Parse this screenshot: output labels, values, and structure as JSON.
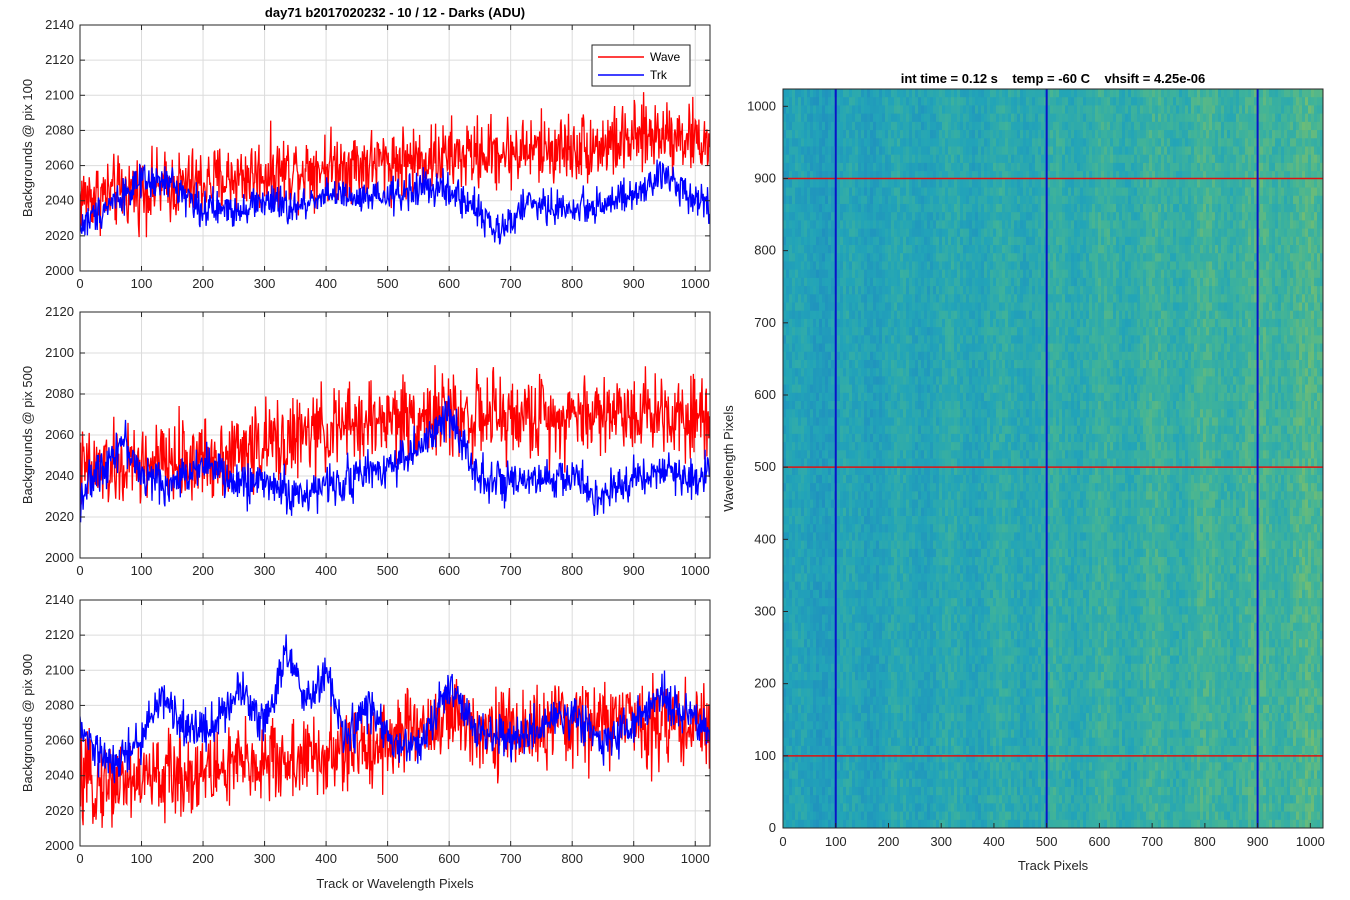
{
  "figure_title": "day71 b2017020232 - 10 / 12 - Darks (ADU)",
  "colors": {
    "wave": "#ff0000",
    "trk": "#0000ff",
    "grid": "#dcdcdc",
    "axis": "#262626",
    "hline": "#e01010",
    "vline": "#0a14c8"
  },
  "chart_data": [
    {
      "type": "line",
      "title": "day71 b2017020232 - 10 / 12 - Darks (ADU)",
      "xlabel": "",
      "ylabel": "Backgrounds @ pix 100",
      "xlim": [
        0,
        1024
      ],
      "ylim": [
        2000,
        2140
      ],
      "xticks": [
        0,
        100,
        200,
        300,
        400,
        500,
        600,
        700,
        800,
        900,
        1000
      ],
      "yticks": [
        2000,
        2020,
        2040,
        2060,
        2080,
        2100,
        2120,
        2140
      ],
      "grid": true,
      "legend": {
        "placement": "top-right",
        "entries": [
          "Wave",
          "Trk"
        ]
      },
      "series": [
        {
          "name": "Wave",
          "color": "#ff0000",
          "noise": 10,
          "x": [
            0,
            100,
            200,
            300,
            400,
            500,
            600,
            700,
            800,
            900,
            950,
            1024
          ],
          "y": [
            2042,
            2046,
            2050,
            2056,
            2060,
            2062,
            2065,
            2068,
            2070,
            2074,
            2080,
            2072
          ]
        },
        {
          "name": "Trk",
          "color": "#0000ff",
          "noise": 5,
          "x": [
            0,
            60,
            100,
            150,
            200,
            250,
            300,
            350,
            400,
            450,
            500,
            560,
            600,
            650,
            680,
            720,
            800,
            900,
            950,
            1000,
            1024
          ],
          "y": [
            2025,
            2042,
            2050,
            2050,
            2035,
            2035,
            2040,
            2035,
            2045,
            2040,
            2042,
            2048,
            2045,
            2035,
            2020,
            2038,
            2035,
            2042,
            2055,
            2042,
            2038
          ]
        }
      ]
    },
    {
      "type": "line",
      "xlabel": "",
      "ylabel": "Backgrounds @ pix 500",
      "xlim": [
        0,
        1024
      ],
      "ylim": [
        2000,
        2120
      ],
      "xticks": [
        0,
        100,
        200,
        300,
        400,
        500,
        600,
        700,
        800,
        900,
        1000
      ],
      "yticks": [
        2000,
        2020,
        2040,
        2060,
        2080,
        2100,
        2120
      ],
      "grid": true,
      "series": [
        {
          "name": "Wave",
          "color": "#ff0000",
          "noise": 10,
          "x": [
            0,
            100,
            200,
            300,
            400,
            500,
            600,
            700,
            800,
            900,
            1024
          ],
          "y": [
            2042,
            2045,
            2048,
            2055,
            2062,
            2068,
            2070,
            2068,
            2070,
            2072,
            2070
          ]
        },
        {
          "name": "Trk",
          "color": "#0000ff",
          "noise": 5,
          "x": [
            0,
            70,
            100,
            150,
            200,
            250,
            300,
            350,
            400,
            450,
            500,
            560,
            600,
            650,
            700,
            800,
            850,
            900,
            950,
            1000,
            1024
          ],
          "y": [
            2030,
            2058,
            2040,
            2035,
            2048,
            2036,
            2038,
            2030,
            2035,
            2040,
            2045,
            2055,
            2070,
            2040,
            2035,
            2040,
            2028,
            2040,
            2042,
            2038,
            2045
          ]
        }
      ]
    },
    {
      "type": "line",
      "xlabel": "Track or Wavelength Pixels",
      "ylabel": "Backgrounds @ pix 900",
      "xlim": [
        0,
        1024
      ],
      "ylim": [
        2000,
        2140
      ],
      "xticks": [
        0,
        100,
        200,
        300,
        400,
        500,
        600,
        700,
        800,
        900,
        1000
      ],
      "yticks": [
        2000,
        2020,
        2040,
        2060,
        2080,
        2100,
        2120,
        2140
      ],
      "grid": true,
      "series": [
        {
          "name": "Wave",
          "color": "#ff0000",
          "noise": 12,
          "x": [
            0,
            100,
            200,
            300,
            400,
            500,
            550,
            600,
            700,
            800,
            900,
            1024
          ],
          "y": [
            2035,
            2038,
            2042,
            2048,
            2050,
            2060,
            2068,
            2072,
            2065,
            2070,
            2072,
            2068
          ]
        },
        {
          "name": "Trk",
          "color": "#0000ff",
          "noise": 6,
          "x": [
            0,
            50,
            100,
            130,
            180,
            220,
            260,
            300,
            335,
            370,
            400,
            430,
            470,
            500,
            550,
            600,
            650,
            700,
            800,
            850,
            900,
            950,
            1000,
            1024
          ],
          "y": [
            2065,
            2045,
            2060,
            2085,
            2065,
            2070,
            2090,
            2070,
            2110,
            2080,
            2100,
            2060,
            2080,
            2060,
            2055,
            2090,
            2065,
            2060,
            2075,
            2060,
            2070,
            2085,
            2070,
            2065
          ]
        }
      ]
    },
    {
      "type": "heatmap",
      "title": "int time = 0.12 s    temp = -60 C    vhsift = 4.25e-06",
      "xlabel": "Track Pixels",
      "ylabel": "Wavelength Pixels",
      "xlim": [
        0,
        1024
      ],
      "ylim": [
        0,
        1024
      ],
      "xticks": [
        0,
        100,
        200,
        300,
        400,
        500,
        600,
        700,
        800,
        900,
        1000
      ],
      "yticks": [
        0,
        100,
        200,
        300,
        400,
        500,
        600,
        700,
        800,
        900,
        1000
      ],
      "colormap": [
        "#1f8fbf",
        "#22a4b8",
        "#3fb39a",
        "#7bbf6c"
      ],
      "horizontal_markers": [
        100,
        500,
        900
      ],
      "vertical_markers": [
        100,
        500,
        900
      ]
    }
  ]
}
